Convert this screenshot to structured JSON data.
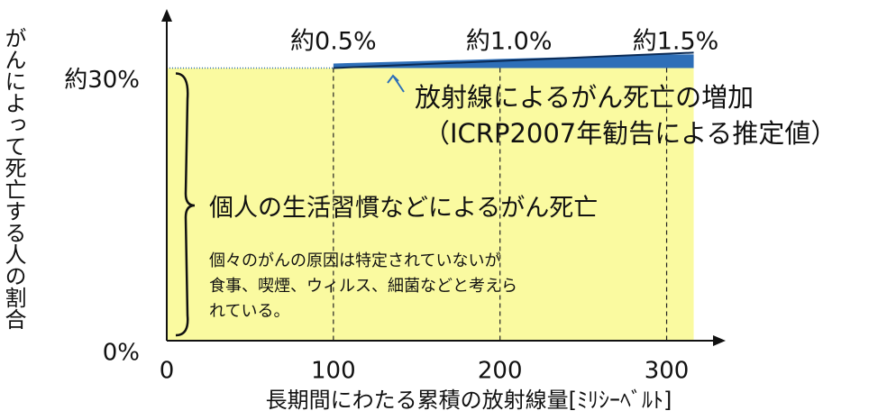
{
  "chart_data": {
    "type": "area",
    "y_label": "がんによって死亡する人の割合",
    "x_label": "長期間にわたる累積の放射線量[ﾐﾘｼｰﾍﾞﾙﾄ]",
    "xlim": [
      0,
      330
    ],
    "xticks": [
      0,
      100,
      200,
      300
    ],
    "ylim": [
      0,
      36
    ],
    "yticks": [
      {
        "value": 0,
        "label": "0%"
      },
      {
        "value": 30,
        "label": "約30%"
      }
    ],
    "baseline": 30,
    "baseline_color": "#fafaa0",
    "x": [
      100,
      200,
      300
    ],
    "series": [
      {
        "name": "放射線によるがん死亡の増加",
        "color": "#2e6fb8",
        "values": [
          0.5,
          1.0,
          1.5
        ],
        "value_labels": [
          "約0.5%",
          "約1.0%",
          "約1.5%"
        ]
      }
    ],
    "annotations": {
      "increase_note": "（ICRP2007年勧告による推定値）",
      "lifestyle": "個人の生活習慣などによるがん死亡",
      "lifestyle_note": [
        "個々のがんの原因は特定されていないが",
        "食事、喫煙、ウィルス、細菌などと考えら",
        "れている。"
      ]
    },
    "grid": true
  }
}
